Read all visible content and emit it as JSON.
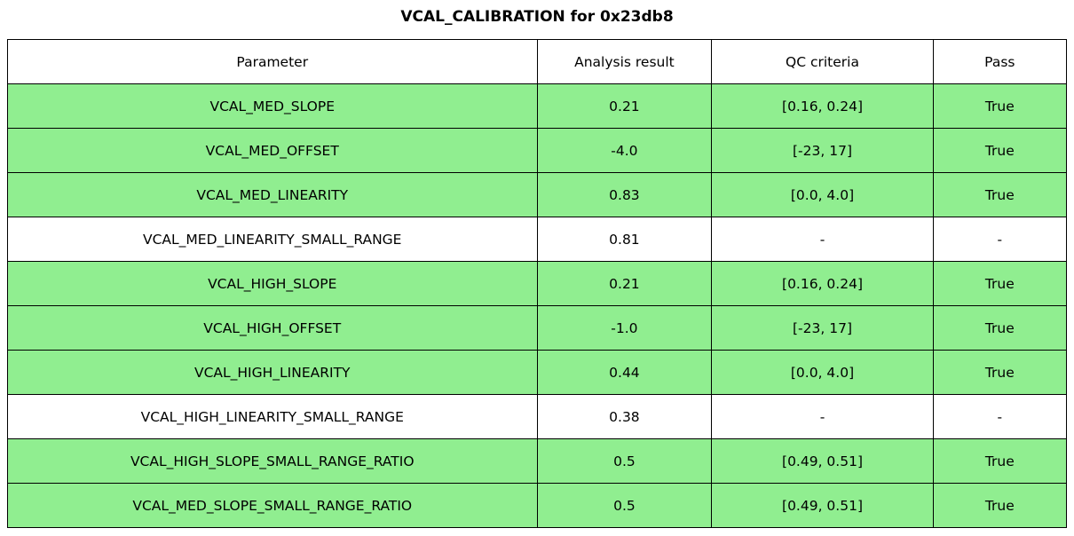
{
  "colors": {
    "pass_row_background": "#90EE90",
    "neutral_row_background": "#FFFFFF",
    "border": "#000000",
    "text": "#000000"
  },
  "chart_data": {
    "type": "table",
    "title": "VCAL_CALIBRATION for 0x23db8",
    "columns": [
      "Parameter",
      "Analysis result",
      "QC criteria",
      "Pass"
    ],
    "rows": [
      {
        "parameter": "VCAL_MED_SLOPE",
        "result": "0.21",
        "criteria": "[0.16, 0.24]",
        "pass": "True",
        "state": "pass"
      },
      {
        "parameter": "VCAL_MED_OFFSET",
        "result": "-4.0",
        "criteria": "[-23, 17]",
        "pass": "True",
        "state": "pass"
      },
      {
        "parameter": "VCAL_MED_LINEARITY",
        "result": "0.83",
        "criteria": "[0.0, 4.0]",
        "pass": "True",
        "state": "pass"
      },
      {
        "parameter": "VCAL_MED_LINEARITY_SMALL_RANGE",
        "result": "0.81",
        "criteria": "-",
        "pass": "-",
        "state": "neutral"
      },
      {
        "parameter": "VCAL_HIGH_SLOPE",
        "result": "0.21",
        "criteria": "[0.16, 0.24]",
        "pass": "True",
        "state": "pass"
      },
      {
        "parameter": "VCAL_HIGH_OFFSET",
        "result": "-1.0",
        "criteria": "[-23, 17]",
        "pass": "True",
        "state": "pass"
      },
      {
        "parameter": "VCAL_HIGH_LINEARITY",
        "result": "0.44",
        "criteria": "[0.0, 4.0]",
        "pass": "True",
        "state": "pass"
      },
      {
        "parameter": "VCAL_HIGH_LINEARITY_SMALL_RANGE",
        "result": "0.38",
        "criteria": "-",
        "pass": "-",
        "state": "neutral"
      },
      {
        "parameter": "VCAL_HIGH_SLOPE_SMALL_RANGE_RATIO",
        "result": "0.5",
        "criteria": "[0.49, 0.51]",
        "pass": "True",
        "state": "pass"
      },
      {
        "parameter": "VCAL_MED_SLOPE_SMALL_RANGE_RATIO",
        "result": "0.5",
        "criteria": "[0.49, 0.51]",
        "pass": "True",
        "state": "pass"
      }
    ]
  }
}
